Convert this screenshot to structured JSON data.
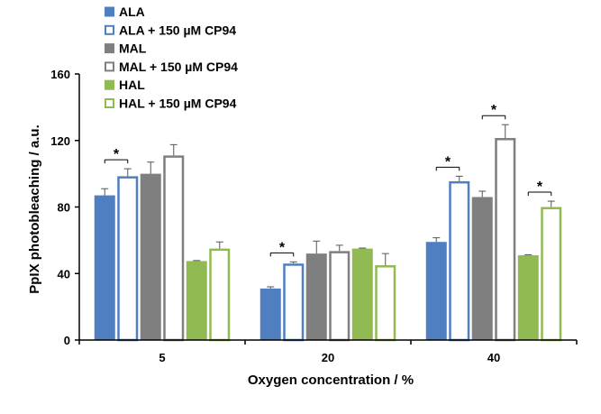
{
  "chart_data": {
    "type": "bar",
    "categories": [
      "5",
      "20",
      "40"
    ],
    "xlabel": "Oxygen concentration / %",
    "ylabel": "PpIX photobleaching / a.u.",
    "ylim": [
      0,
      160
    ],
    "yticks": [
      "0",
      "40",
      "80",
      "120",
      "160"
    ],
    "grid": false,
    "legend_position": "top-left",
    "series": [
      {
        "name": "ALA",
        "values": [
          87,
          31,
          59
        ],
        "errors": [
          4,
          1,
          2.5
        ],
        "color": "#4F7EC1",
        "fill": "solid"
      },
      {
        "name": "ALA + 150 µM CP94",
        "values": [
          98.5,
          46,
          95.5
        ],
        "errors": [
          4.5,
          1,
          3
        ],
        "color": "#4F7EC1",
        "fill": "hollow"
      },
      {
        "name": "MAL",
        "values": [
          100,
          52,
          86
        ],
        "errors": [
          7,
          7.5,
          3.5
        ],
        "color": "#7F7F7F",
        "fill": "solid"
      },
      {
        "name": "MAL + 150 µM CP94",
        "values": [
          111,
          53.5,
          121.5
        ],
        "errors": [
          6.5,
          3.5,
          8
        ],
        "color": "#7F7F7F",
        "fill": "hollow"
      },
      {
        "name": "HAL",
        "values": [
          47.5,
          55,
          51
        ],
        "errors": [
          0.3,
          0.3,
          0.3
        ],
        "color": "#92BA52",
        "fill": "solid"
      },
      {
        "name": "HAL + 150 µM CP94",
        "values": [
          55,
          45,
          80
        ],
        "errors": [
          4,
          7,
          3.5
        ],
        "color": "#92BA52",
        "fill": "hollow"
      }
    ],
    "significance": [
      {
        "category": "5",
        "between": [
          "ALA",
          "ALA + 150 µM CP94"
        ],
        "label": "*"
      },
      {
        "category": "20",
        "between": [
          "ALA",
          "ALA + 150 µM CP94"
        ],
        "label": "*"
      },
      {
        "category": "40",
        "between": [
          "ALA",
          "ALA + 150 µM CP94"
        ],
        "label": "*"
      },
      {
        "category": "40",
        "between": [
          "MAL",
          "MAL + 150 µM CP94"
        ],
        "label": "*"
      },
      {
        "category": "40",
        "between": [
          "HAL",
          "HAL + 150 µM CP94"
        ],
        "label": "*"
      }
    ]
  }
}
